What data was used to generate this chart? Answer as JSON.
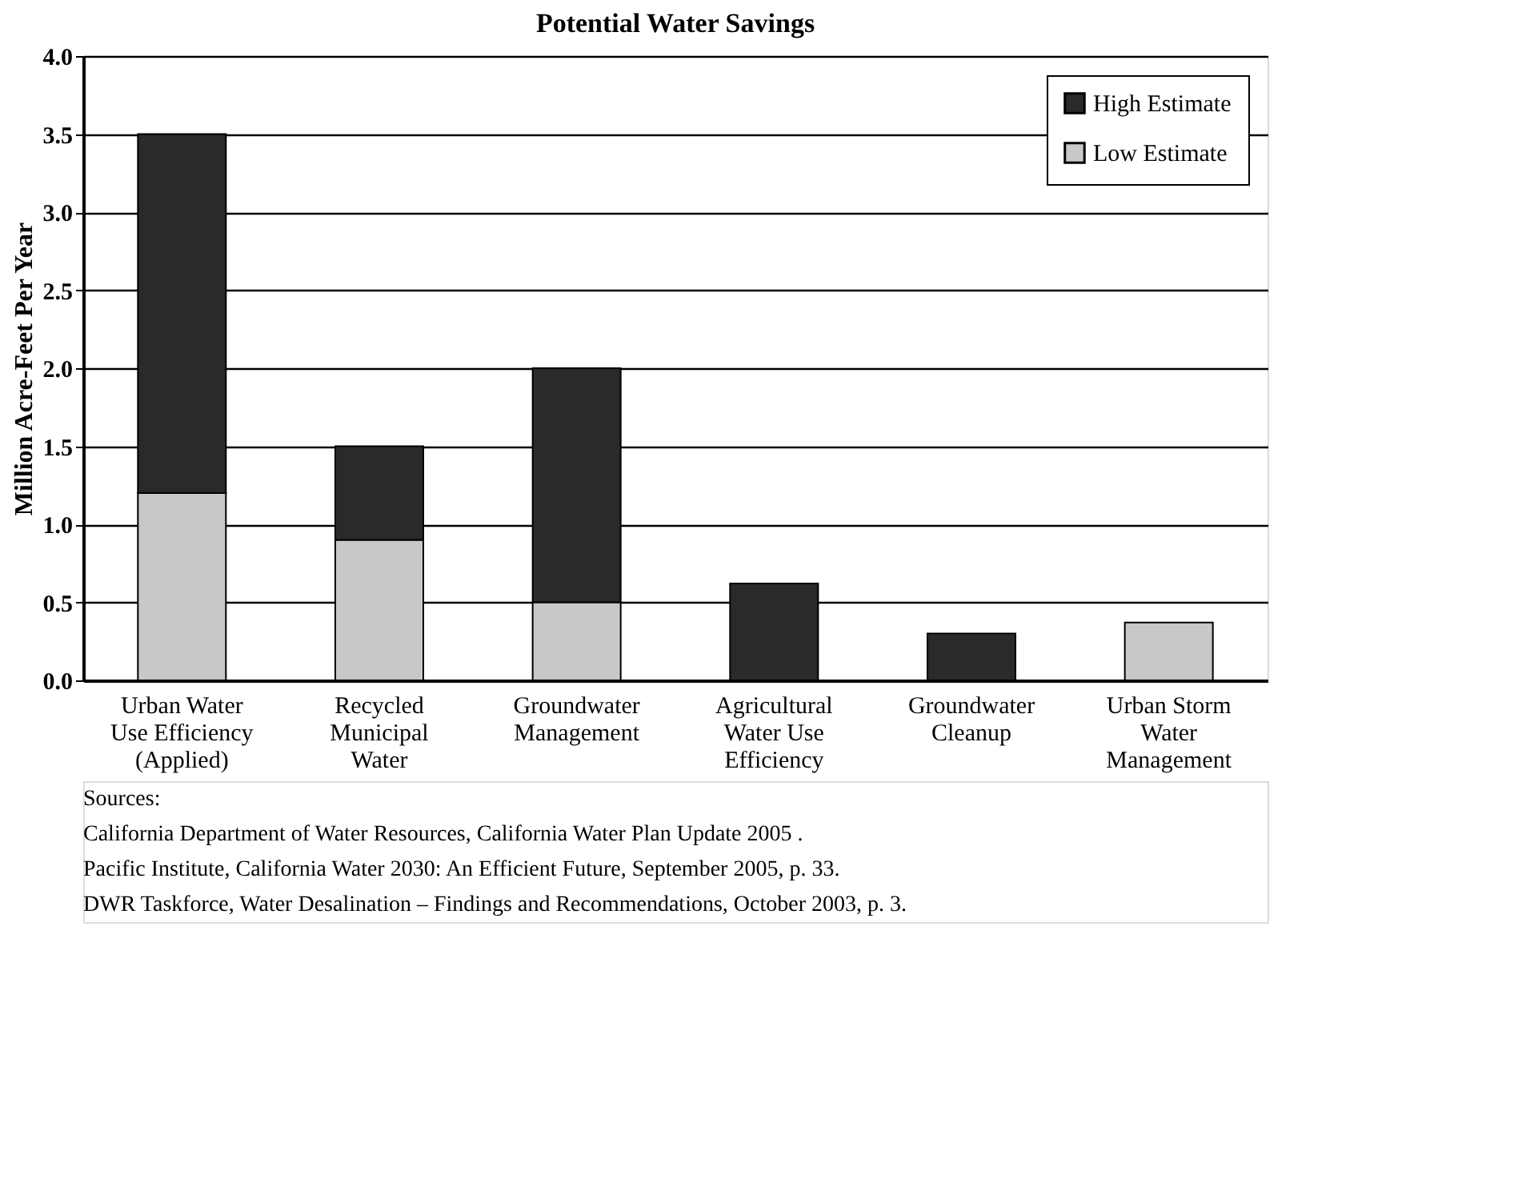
{
  "chart_data": {
    "type": "bar",
    "title": "Potential Water Savings",
    "ylabel": "Million Acre-Feet Per Year",
    "categories": [
      "Urban Water Use Efficiency (Applied)",
      "Recycled Municipal Water",
      "Groundwater Management",
      "Agricultural Water Use Efficiency",
      "Groundwater Cleanup",
      "Urban Storm Water Management"
    ],
    "stacked": true,
    "series": [
      {
        "name": "Low Estimate",
        "color": "#c8c8c8",
        "values": [
          1.2,
          0.9,
          0.5,
          null,
          null,
          0.37
        ]
      },
      {
        "name": "High Estimate",
        "color": "#2a2a2a",
        "values": [
          2.3,
          0.6,
          1.5,
          0.62,
          0.3,
          null
        ]
      }
    ],
    "ylim": [
      0,
      4
    ],
    "yticks": [
      {
        "value": 0,
        "label": "0.0"
      },
      {
        "value": 0.5,
        "label": "0.5"
      },
      {
        "value": 1,
        "label": "1.0"
      },
      {
        "value": 1.5,
        "label": "1.5"
      },
      {
        "value": 2,
        "label": "2.0"
      },
      {
        "value": 2.5,
        "label": "2.5"
      },
      {
        "value": 3,
        "label": "3.0"
      },
      {
        "value": 3.5,
        "label": "3.5"
      },
      {
        "value": 4,
        "label": "4.0"
      }
    ],
    "grid": "y",
    "legend": "top right",
    "annotations": [
      "Sources:",
      "California Department of Water Resources, California Water Plan Update 2005 .",
      "Pacific Institute, California Water 2030: An Efficient Future, September 2005, p. 33.",
      "DWR Taskforce, Water Desalination – Findings and Recommendations, October 2003, p. 3."
    ]
  }
}
